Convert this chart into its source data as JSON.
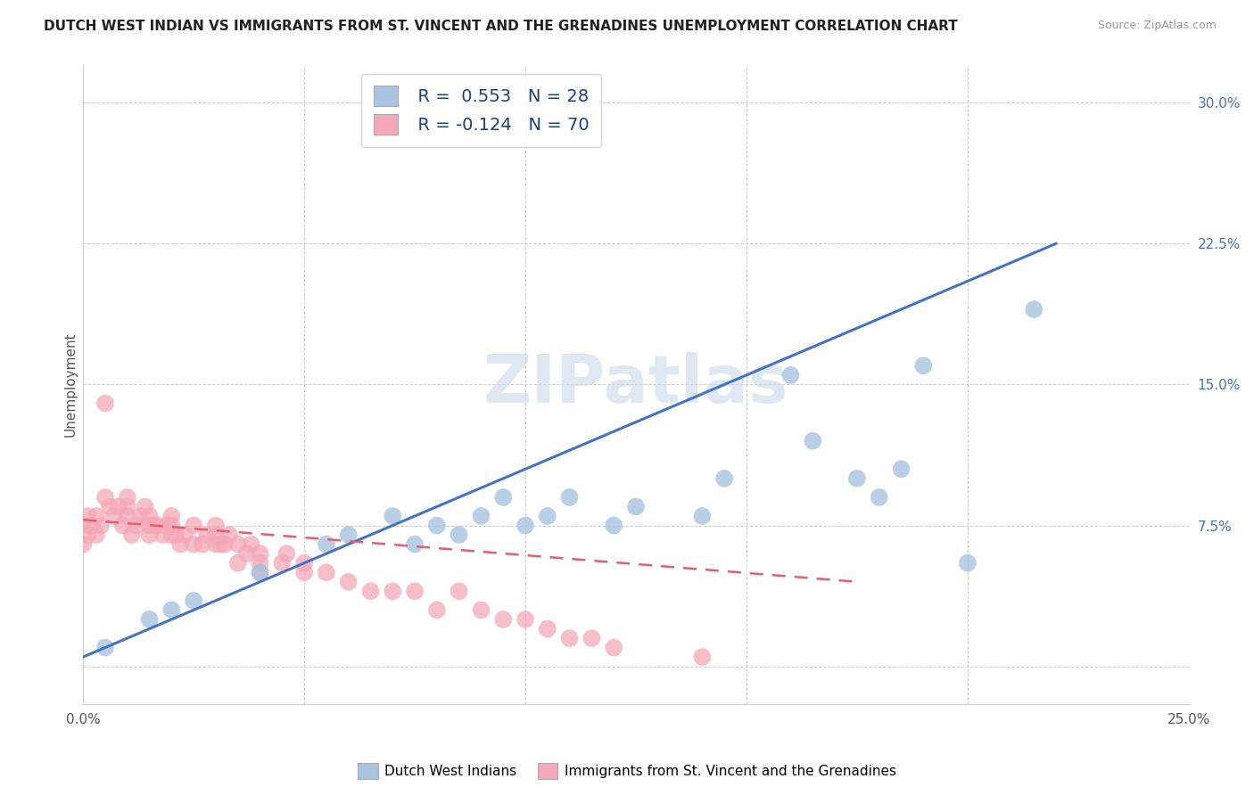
{
  "title": "DUTCH WEST INDIAN VS IMMIGRANTS FROM ST. VINCENT AND THE GRENADINES UNEMPLOYMENT CORRELATION CHART",
  "source": "Source: ZipAtlas.com",
  "ylabel": "Unemployment",
  "xlim": [
    0.0,
    0.25
  ],
  "ylim": [
    -0.02,
    0.32
  ],
  "xticks": [
    0.0,
    0.05,
    0.1,
    0.15,
    0.2,
    0.25
  ],
  "xticklabels": [
    "0.0%",
    "",
    "",
    "",
    "",
    "25.0%"
  ],
  "yticks": [
    0.0,
    0.075,
    0.15,
    0.225,
    0.3
  ],
  "yticklabels": [
    "",
    "7.5%",
    "15.0%",
    "22.5%",
    "30.0%"
  ],
  "blue_R": 0.553,
  "blue_N": 28,
  "pink_R": -0.124,
  "pink_N": 70,
  "blue_color": "#a8c4e0",
  "pink_color": "#f4a8b8",
  "blue_line_color": "#4472c4",
  "pink_line_color": "#e06070",
  "watermark": "ZIPatlas",
  "legend_label_blue": "Dutch West Indians",
  "legend_label_pink": "Immigrants from St. Vincent and the Grenadines",
  "blue_scatter_x": [
    0.005,
    0.015,
    0.02,
    0.025,
    0.04,
    0.055,
    0.06,
    0.07,
    0.075,
    0.08,
    0.085,
    0.09,
    0.095,
    0.1,
    0.105,
    0.11,
    0.12,
    0.125,
    0.14,
    0.145,
    0.16,
    0.165,
    0.175,
    0.18,
    0.185,
    0.19,
    0.2,
    0.215
  ],
  "blue_scatter_y": [
    0.01,
    0.025,
    0.03,
    0.035,
    0.05,
    0.065,
    0.07,
    0.08,
    0.065,
    0.075,
    0.07,
    0.08,
    0.09,
    0.075,
    0.08,
    0.09,
    0.075,
    0.085,
    0.08,
    0.1,
    0.155,
    0.12,
    0.1,
    0.09,
    0.105,
    0.16,
    0.055,
    0.19
  ],
  "pink_scatter_x": [
    0.0,
    0.0,
    0.001,
    0.001,
    0.002,
    0.003,
    0.003,
    0.004,
    0.005,
    0.005,
    0.006,
    0.007,
    0.008,
    0.009,
    0.01,
    0.01,
    0.01,
    0.011,
    0.012,
    0.013,
    0.014,
    0.015,
    0.015,
    0.015,
    0.016,
    0.017,
    0.018,
    0.019,
    0.02,
    0.02,
    0.02,
    0.021,
    0.022,
    0.023,
    0.025,
    0.025,
    0.027,
    0.028,
    0.03,
    0.03,
    0.03,
    0.031,
    0.032,
    0.033,
    0.035,
    0.035,
    0.037,
    0.038,
    0.04,
    0.04,
    0.04,
    0.045,
    0.046,
    0.05,
    0.05,
    0.055,
    0.06,
    0.065,
    0.07,
    0.075,
    0.08,
    0.085,
    0.09,
    0.095,
    0.1,
    0.105,
    0.11,
    0.115,
    0.12,
    0.14
  ],
  "pink_scatter_y": [
    0.065,
    0.075,
    0.07,
    0.08,
    0.075,
    0.07,
    0.08,
    0.075,
    0.14,
    0.09,
    0.085,
    0.08,
    0.085,
    0.075,
    0.08,
    0.085,
    0.09,
    0.07,
    0.075,
    0.08,
    0.085,
    0.07,
    0.075,
    0.08,
    0.075,
    0.075,
    0.07,
    0.075,
    0.07,
    0.075,
    0.08,
    0.07,
    0.065,
    0.07,
    0.065,
    0.075,
    0.065,
    0.07,
    0.065,
    0.07,
    0.075,
    0.065,
    0.065,
    0.07,
    0.055,
    0.065,
    0.06,
    0.065,
    0.05,
    0.055,
    0.06,
    0.055,
    0.06,
    0.05,
    0.055,
    0.05,
    0.045,
    0.04,
    0.04,
    0.04,
    0.03,
    0.04,
    0.03,
    0.025,
    0.025,
    0.02,
    0.015,
    0.015,
    0.01,
    0.005
  ],
  "blue_line_x0": 0.0,
  "blue_line_y0": 0.005,
  "blue_line_x1": 0.22,
  "blue_line_y1": 0.225,
  "pink_line_x0": 0.0,
  "pink_line_y0": 0.078,
  "pink_line_x1": 0.175,
  "pink_line_y1": 0.045
}
